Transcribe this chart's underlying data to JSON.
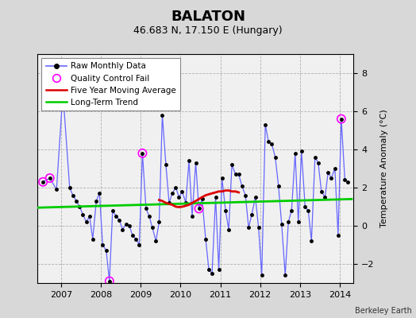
{
  "title": "BALATON",
  "subtitle": "46.683 N, 17.150 E (Hungary)",
  "ylabel": "Temperature Anomaly (°C)",
  "credit": "Berkeley Earth",
  "ylim": [
    -3,
    9
  ],
  "yticks": [
    -2,
    0,
    2,
    4,
    6,
    8
  ],
  "bg_color": "#d8d8d8",
  "plot_bg_color": "#f0f0f0",
  "raw_line_color": "#6666ff",
  "raw_marker_color": "#000000",
  "raw_lw": 0.9,
  "ma_color": "#dd0000",
  "ma_lw": 2.0,
  "trend_color": "#00cc00",
  "trend_lw": 2.0,
  "qc_color": "#ff00ff",
  "raw_data": [
    [
      2006.54,
      2.3
    ],
    [
      2006.71,
      2.5
    ],
    [
      2006.88,
      1.9
    ],
    [
      2007.04,
      7.0
    ],
    [
      2007.21,
      2.0
    ],
    [
      2007.29,
      1.6
    ],
    [
      2007.38,
      1.3
    ],
    [
      2007.46,
      1.0
    ],
    [
      2007.54,
      0.6
    ],
    [
      2007.63,
      0.2
    ],
    [
      2007.71,
      0.5
    ],
    [
      2007.79,
      -0.7
    ],
    [
      2007.88,
      1.3
    ],
    [
      2007.96,
      1.7
    ],
    [
      2008.04,
      -1.0
    ],
    [
      2008.13,
      -1.3
    ],
    [
      2008.21,
      -2.9
    ],
    [
      2008.29,
      0.8
    ],
    [
      2008.38,
      0.5
    ],
    [
      2008.46,
      0.3
    ],
    [
      2008.54,
      -0.2
    ],
    [
      2008.63,
      0.1
    ],
    [
      2008.71,
      0.0
    ],
    [
      2008.79,
      -0.5
    ],
    [
      2008.88,
      -0.7
    ],
    [
      2008.96,
      -1.0
    ],
    [
      2009.04,
      3.8
    ],
    [
      2009.13,
      0.9
    ],
    [
      2009.21,
      0.5
    ],
    [
      2009.29,
      -0.1
    ],
    [
      2009.38,
      -0.8
    ],
    [
      2009.46,
      0.2
    ],
    [
      2009.54,
      5.8
    ],
    [
      2009.63,
      3.2
    ],
    [
      2009.71,
      1.2
    ],
    [
      2009.79,
      1.7
    ],
    [
      2009.88,
      2.0
    ],
    [
      2009.96,
      1.5
    ],
    [
      2010.04,
      1.8
    ],
    [
      2010.13,
      1.2
    ],
    [
      2010.21,
      3.4
    ],
    [
      2010.29,
      0.5
    ],
    [
      2010.38,
      3.3
    ],
    [
      2010.46,
      0.9
    ],
    [
      2010.54,
      1.4
    ],
    [
      2010.63,
      -0.7
    ],
    [
      2010.71,
      -2.3
    ],
    [
      2010.79,
      -2.5
    ],
    [
      2010.88,
      1.5
    ],
    [
      2010.96,
      -2.3
    ],
    [
      2011.04,
      2.5
    ],
    [
      2011.13,
      0.8
    ],
    [
      2011.21,
      -0.2
    ],
    [
      2011.29,
      3.2
    ],
    [
      2011.38,
      2.7
    ],
    [
      2011.46,
      2.7
    ],
    [
      2011.54,
      2.1
    ],
    [
      2011.63,
      1.6
    ],
    [
      2011.71,
      -0.1
    ],
    [
      2011.79,
      0.6
    ],
    [
      2011.88,
      1.5
    ],
    [
      2011.96,
      -0.1
    ],
    [
      2012.04,
      -2.6
    ],
    [
      2012.13,
      5.3
    ],
    [
      2012.21,
      4.4
    ],
    [
      2012.29,
      4.3
    ],
    [
      2012.38,
      3.6
    ],
    [
      2012.46,
      2.1
    ],
    [
      2012.54,
      0.1
    ],
    [
      2012.63,
      -2.6
    ],
    [
      2012.71,
      0.2
    ],
    [
      2012.79,
      0.8
    ],
    [
      2012.88,
      3.8
    ],
    [
      2012.96,
      0.2
    ],
    [
      2013.04,
      3.9
    ],
    [
      2013.13,
      1.0
    ],
    [
      2013.21,
      0.8
    ],
    [
      2013.29,
      -0.8
    ],
    [
      2013.38,
      3.6
    ],
    [
      2013.46,
      3.3
    ],
    [
      2013.54,
      1.8
    ],
    [
      2013.63,
      1.5
    ],
    [
      2013.71,
      2.8
    ],
    [
      2013.79,
      2.5
    ],
    [
      2013.88,
      3.0
    ],
    [
      2013.96,
      -0.5
    ],
    [
      2014.04,
      5.6
    ],
    [
      2014.13,
      2.4
    ],
    [
      2014.21,
      2.3
    ]
  ],
  "qc_fail_points": [
    [
      2006.54,
      2.3
    ],
    [
      2006.71,
      2.5
    ],
    [
      2008.21,
      -2.9
    ],
    [
      2009.04,
      3.8
    ],
    [
      2010.46,
      0.9
    ],
    [
      2014.04,
      5.6
    ]
  ],
  "ma_data": [
    [
      2009.46,
      1.35
    ],
    [
      2009.54,
      1.3
    ],
    [
      2009.63,
      1.2
    ],
    [
      2009.71,
      1.15
    ],
    [
      2009.79,
      1.1
    ],
    [
      2009.88,
      1.0
    ],
    [
      2009.96,
      0.98
    ],
    [
      2010.04,
      1.0
    ],
    [
      2010.13,
      1.05
    ],
    [
      2010.21,
      1.1
    ],
    [
      2010.29,
      1.2
    ],
    [
      2010.38,
      1.3
    ],
    [
      2010.46,
      1.4
    ],
    [
      2010.54,
      1.5
    ],
    [
      2010.63,
      1.6
    ],
    [
      2010.71,
      1.65
    ],
    [
      2010.79,
      1.7
    ],
    [
      2010.88,
      1.75
    ],
    [
      2010.96,
      1.8
    ],
    [
      2011.04,
      1.8
    ],
    [
      2011.13,
      1.85
    ],
    [
      2011.21,
      1.85
    ],
    [
      2011.29,
      1.8
    ],
    [
      2011.38,
      1.8
    ],
    [
      2011.46,
      1.75
    ]
  ],
  "trend_data": [
    [
      2006.4,
      0.95
    ],
    [
      2014.3,
      1.4
    ]
  ],
  "xlim": [
    2006.4,
    2014.35
  ],
  "xticks": [
    2007,
    2008,
    2009,
    2010,
    2011,
    2012,
    2013,
    2014
  ],
  "title_fontsize": 13,
  "subtitle_fontsize": 9,
  "tick_fontsize": 8,
  "ylabel_fontsize": 8,
  "legend_fontsize": 7.5,
  "credit_fontsize": 7
}
